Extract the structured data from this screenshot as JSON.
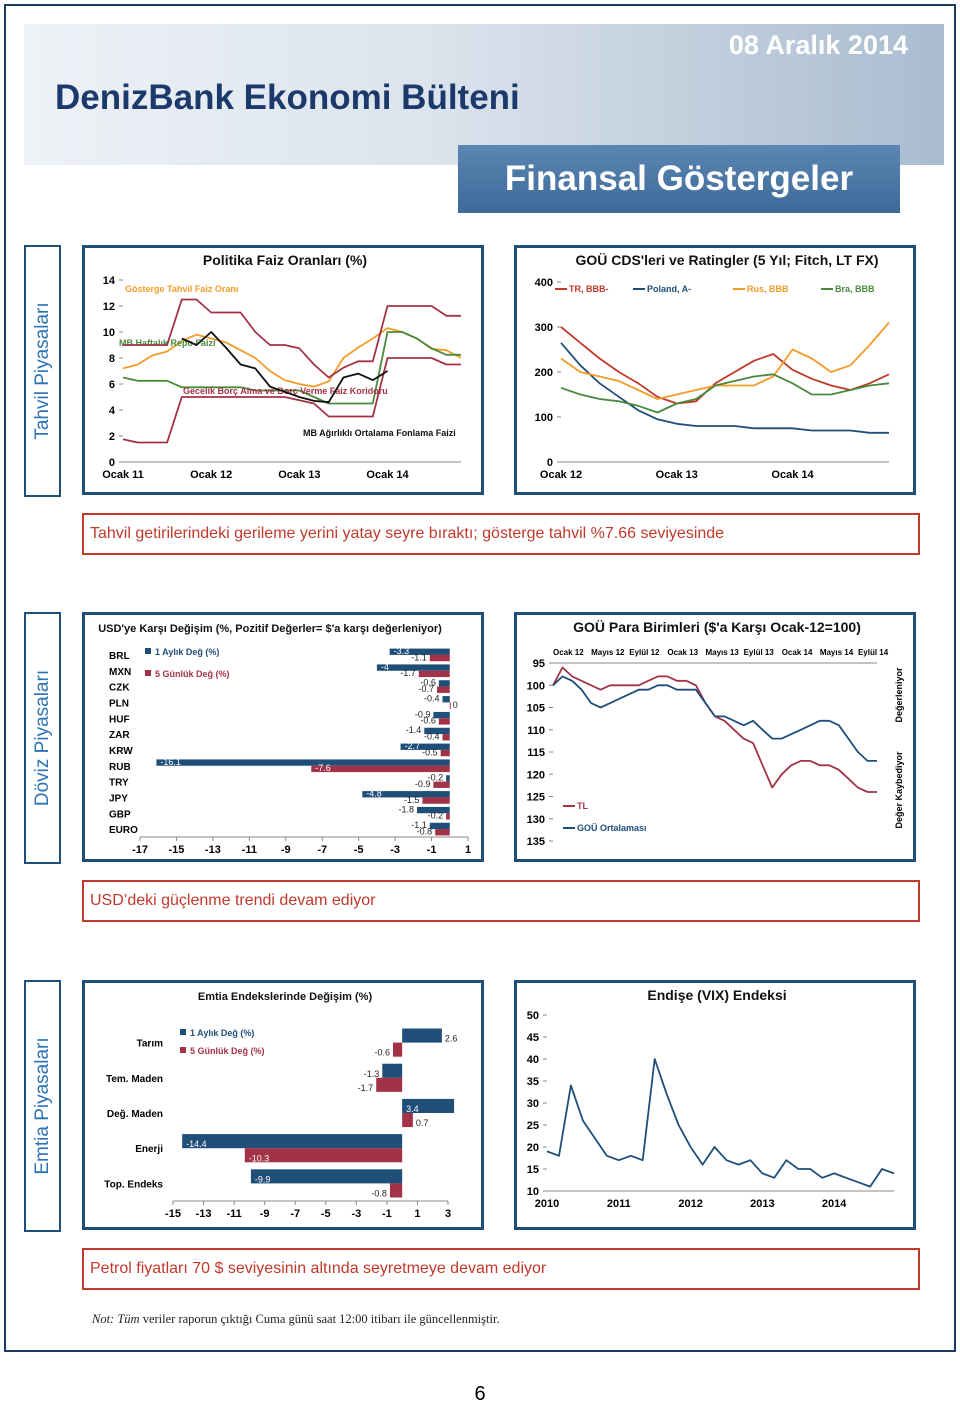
{
  "header": {
    "date": "08 Aralık 2014",
    "title": "DenizBank Ekonomi Bülteni",
    "subtitle": "Finansal Göstergeler"
  },
  "sections": [
    {
      "label": "Tahvil Piyasaları",
      "caption": "Tahvil getirilerindeki gerileme yerini yatay seyre bıraktı; gösterge tahvil %7.66 seviyesinde",
      "charts": [
        {
          "type": "line",
          "title": "Politika Faiz Oranları (%)",
          "legend": false,
          "categories": [
            "Ocak 11",
            null,
            null,
            null,
            null,
            null,
            "Ocak 12",
            null,
            null,
            null,
            null,
            null,
            "Ocak 13",
            null,
            null,
            null,
            null,
            null,
            "Ocak 14",
            null,
            null,
            null,
            null,
            null
          ],
          "ylim": [
            0,
            14
          ],
          "yticks": [
            0,
            2,
            4,
            6,
            8,
            10,
            12,
            14
          ],
          "series": [
            {
              "name": "Gösterge Tahvil Faiz Oranı",
              "color": "#f39c2a",
              "values": [
                7.2,
                7.5,
                8.2,
                8.5,
                9.3,
                9.8,
                9.5,
                9.2,
                8.6,
                8.0,
                7.0,
                6.3,
                6.0,
                5.8,
                6.2,
                8.0,
                8.8,
                9.5,
                10.3,
                10.0,
                9.5,
                8.7,
                8.6,
                8.0
              ]
            },
            {
              "name": "MB Haftalık Repo Faizi",
              "color": "#4a8a3c",
              "values": [
                6.5,
                6.25,
                6.25,
                6.25,
                5.75,
                5.75,
                5.75,
                5.75,
                5.75,
                5.5,
                5.5,
                5.5,
                5.5,
                5.0,
                4.5,
                4.5,
                4.5,
                4.5,
                10.0,
                10.0,
                9.5,
                8.75,
                8.25,
                8.25
              ]
            },
            {
              "name": "Gecelik Borç Alma ve Borç Verme Faiz Koridoru",
              "color": "#a33247",
              "values": [
                9.0,
                9.0,
                9.0,
                9.0,
                12.5,
                12.5,
                11.5,
                11.5,
                11.5,
                10.0,
                9.0,
                9.0,
                8.75,
                7.5,
                6.5,
                7.25,
                7.75,
                7.75,
                12.0,
                12.0,
                12.0,
                12.0,
                11.25,
                11.25
              ],
              "low": [
                1.75,
                1.5,
                1.5,
                1.5,
                5.0,
                5.0,
                5.0,
                5.0,
                5.0,
                5.0,
                5.0,
                5.0,
                4.75,
                4.5,
                3.5,
                3.5,
                3.5,
                3.5,
                8.0,
                8.0,
                8.0,
                8.0,
                7.5,
                7.5
              ]
            },
            {
              "name": "MB Ağırlıklı Ortalama Fonlama Faizi",
              "color": "#111111",
              "values": [
                null,
                null,
                null,
                null,
                9.5,
                9.0,
                10.0,
                8.8,
                7.5,
                7.2,
                5.8,
                5.4,
                5.0,
                4.7,
                4.6,
                6.5,
                6.8,
                6.3,
                7.0,
                null,
                null,
                null,
                null,
                null
              ]
            }
          ]
        },
        {
          "type": "line",
          "title": "GOÜ CDS'leri ve Ratingler (5 Yıl; Fitch, LT FX)",
          "legend": true,
          "categories": [
            "Ocak 12",
            null,
            null,
            null,
            null,
            null,
            "Ocak 13",
            null,
            null,
            null,
            null,
            null,
            "Ocak 14",
            null,
            null,
            null,
            null,
            null
          ],
          "ylim": [
            0,
            400
          ],
          "yticks": [
            0,
            100,
            200,
            300,
            400
          ],
          "series": [
            {
              "name": "TR, BBB-",
              "color": "#c0392b",
              "values": [
                300,
                265,
                230,
                200,
                175,
                145,
                130,
                135,
                175,
                200,
                225,
                240,
                205,
                185,
                170,
                160,
                175,
                195
              ]
            },
            {
              "name": "Poland, A-",
              "color": "#1f4e79",
              "values": [
                265,
                215,
                175,
                145,
                115,
                95,
                85,
                80,
                80,
                80,
                75,
                75,
                75,
                70,
                70,
                70,
                65,
                65
              ]
            },
            {
              "name": "Rus, BBB",
              "color": "#f39c2a",
              "values": [
                230,
                200,
                190,
                180,
                160,
                140,
                150,
                160,
                170,
                170,
                170,
                190,
                250,
                230,
                200,
                215,
                260,
                310
              ]
            },
            {
              "name": "Bra, BBB",
              "color": "#4a8a3c",
              "values": [
                165,
                150,
                140,
                135,
                125,
                110,
                130,
                140,
                170,
                180,
                190,
                195,
                175,
                150,
                150,
                160,
                170,
                175
              ]
            }
          ]
        }
      ]
    },
    {
      "label": "Döviz Piyasaları",
      "caption": "USD’deki güçlenme trendi devam ediyor",
      "charts": [
        {
          "type": "bar",
          "orientation": "horizontal",
          "title": "USD'ye Karşı Değişim (%, Pozitif Değerler= $'a karşı değerleniyor)",
          "legend": true,
          "categories": [
            "BRL",
            "MXN",
            "CZK",
            "PLN",
            "HUF",
            "ZAR",
            "KRW",
            "RUB",
            "TRY",
            "JPY",
            "GBP",
            "EURO"
          ],
          "xlim": [
            -17,
            1
          ],
          "xticks": [
            -17,
            -15,
            -13,
            -11,
            -9,
            -7,
            -5,
            -3,
            -1,
            1
          ],
          "series": [
            {
              "name": "1 Aylık Değ (%)",
              "color": "#1f4e79",
              "values": [
                -3.3,
                -4.0,
                -0.6,
                -0.4,
                -0.9,
                -1.4,
                -2.7,
                -16.1,
                -0.2,
                -4.8,
                -1.8,
                -1.1
              ]
            },
            {
              "name": "5 Günlük Değ (%)",
              "color": "#a33247",
              "values": [
                -1.1,
                -1.7,
                -0.7,
                0,
                -0.6,
                -0.4,
                -0.5,
                -7.6,
                -0.9,
                -1.5,
                -0.2,
                -0.8
              ]
            }
          ]
        },
        {
          "type": "line",
          "title": "GOÜ Para Birimleri ($'a Karşı Ocak-12=100)",
          "legend": true,
          "y_inverted": true,
          "x_labels_top": true,
          "annotations": [
            "Değerleniyor",
            "Değer Kaybediyor"
          ],
          "categories": [
            "Ocak 12",
            null,
            null,
            null,
            "Mayıs 12",
            null,
            null,
            null,
            "Eylül 12",
            null,
            null,
            null,
            "Ocak 13",
            null,
            null,
            null,
            "Mayıs 13",
            null,
            null,
            null,
            "Eylül 13",
            null,
            null,
            null,
            "Ocak 14",
            null,
            null,
            null,
            "Mayıs 14",
            null,
            null,
            null,
            "Eylül 14",
            null,
            null
          ],
          "ylim": [
            95,
            135
          ],
          "yticks": [
            95,
            100,
            105,
            110,
            115,
            120,
            125,
            130,
            135
          ],
          "series": [
            {
              "name": "TL",
              "color": "#a33247",
              "values": [
                100,
                96,
                98,
                99,
                100,
                101,
                100,
                100,
                100,
                100,
                99,
                98,
                98,
                99,
                99,
                100,
                104,
                107,
                108,
                110,
                112,
                113,
                118,
                123,
                120,
                118,
                117,
                117,
                118,
                118,
                119,
                121,
                123,
                124,
                124
              ]
            },
            {
              "name": "GOÜ Ortalaması",
              "color": "#1f4e79",
              "values": [
                100,
                98,
                99,
                101,
                104,
                105,
                104,
                103,
                102,
                101,
                101,
                100,
                100,
                101,
                101,
                101,
                104,
                107,
                107,
                108,
                109,
                108,
                110,
                112,
                112,
                111,
                110,
                109,
                108,
                108,
                109,
                112,
                115,
                117,
                117
              ]
            }
          ]
        }
      ]
    },
    {
      "label": "Emtia Piyasaları",
      "caption": "Petrol fiyatları 70 $ seviyesinin altında seyretmeye devam ediyor",
      "charts": [
        {
          "type": "bar",
          "orientation": "horizontal",
          "title": "Emtia Endekslerinde Değişim (%)",
          "legend": true,
          "categories": [
            "Tarım",
            "Tem. Maden",
            "Değ. Maden",
            "Enerji",
            "Top. Endeks"
          ],
          "xlim": [
            -15,
            3
          ],
          "xticks": [
            -15,
            -13,
            -11,
            -9,
            -7,
            -5,
            -3,
            -1,
            1,
            3
          ],
          "series": [
            {
              "name": "1 Aylık Değ (%)",
              "color": "#1f4e79",
              "values": [
                2.6,
                -1.3,
                3.4,
                -14.4,
                -9.9
              ]
            },
            {
              "name": "5 Günlük Değ (%)",
              "color": "#a33247",
              "values": [
                -0.6,
                -1.7,
                0.7,
                -10.3,
                -0.8
              ]
            }
          ]
        },
        {
          "type": "line",
          "title": "Endişe (VIX)  Endeksi",
          "legend": false,
          "categories": [
            "2010",
            null,
            null,
            null,
            null,
            null,
            "2011",
            null,
            null,
            null,
            null,
            null,
            "2012",
            null,
            null,
            null,
            null,
            null,
            "2013",
            null,
            null,
            null,
            null,
            null,
            "2014",
            null,
            null,
            null,
            null,
            null
          ],
          "ylim": [
            10,
            50
          ],
          "yticks": [
            10,
            15,
            20,
            25,
            30,
            35,
            40,
            45,
            50
          ],
          "series": [
            {
              "name": "VIX",
              "color": "#1f4e79",
              "values": [
                19,
                18,
                34,
                26,
                22,
                18,
                17,
                18,
                17,
                40,
                32,
                25,
                20,
                16,
                20,
                17,
                16,
                17,
                14,
                13,
                17,
                15,
                15,
                13,
                14,
                13,
                12,
                11,
                15,
                14
              ]
            }
          ]
        }
      ]
    }
  ],
  "footer": {
    "note_italic": "Not: Tüm",
    "note": "veriler raporun çıktığı Cuma günü saat 12:00 itibarı ile güncellenmiştir."
  },
  "page_number": "6"
}
